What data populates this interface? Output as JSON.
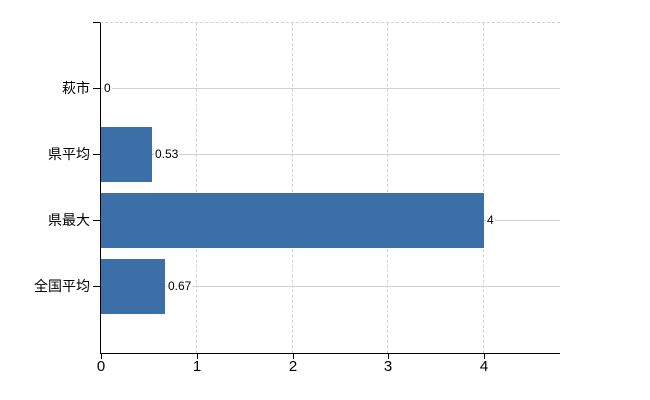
{
  "chart_data": {
    "type": "bar",
    "orientation": "horizontal",
    "title": "",
    "categories": [
      "萩市",
      "県平均",
      "県最大",
      "全国平均"
    ],
    "values": [
      0,
      0.53,
      4,
      0.67
    ],
    "data_labels": [
      "0",
      "0.53",
      "4",
      "0.67"
    ],
    "x_ticks": [
      0,
      1,
      2,
      3,
      4
    ],
    "x_tick_labels": [
      "0",
      "1",
      "2",
      "3",
      "4"
    ],
    "xlim": [
      0,
      4.79
    ],
    "ylabel": "",
    "xlabel": "",
    "grid": "on",
    "legend_position": "none",
    "colors": {
      "bar": "#3c6fa8",
      "gridline": "#cdd5cc",
      "axis": "#000000",
      "text": "#000000",
      "background": "#ffffff"
    }
  }
}
